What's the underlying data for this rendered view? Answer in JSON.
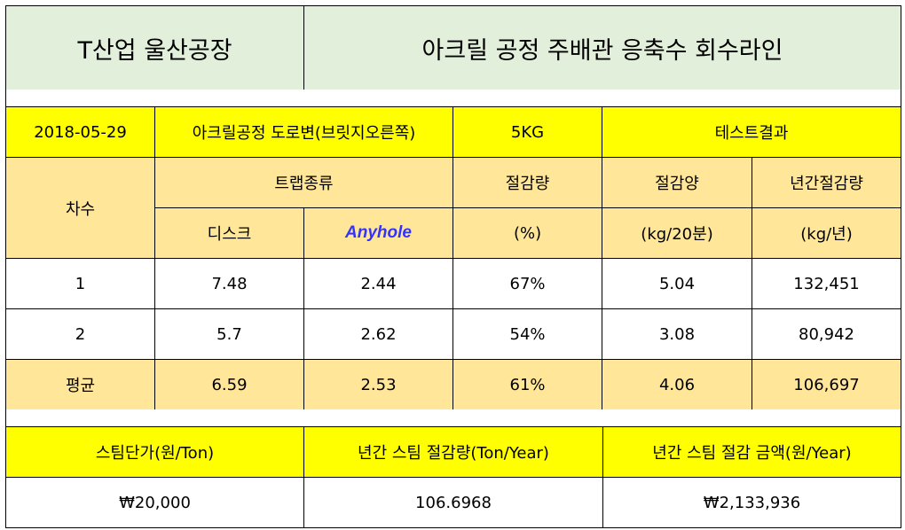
{
  "header": {
    "company": "T산업 울산공장",
    "subject": "아크릴 공정 주배관 응축수 회수라인"
  },
  "info": {
    "date": "2018-05-29",
    "location": "아크릴공정 도로변(브릿지오른쪽)",
    "weight": "5KG",
    "result": "테스트결과"
  },
  "columns": {
    "round": "차수",
    "trap_type": "트랩종류",
    "disc": "디스크",
    "anyhole": "Anyhole",
    "reduction_rate": "절감량",
    "reduction_rate_unit": "(%)",
    "reduction_amount": "절감양",
    "reduction_amount_unit": "(kg/20분)",
    "annual_reduction": "년간절감량",
    "annual_reduction_unit": "(kg/년)"
  },
  "rows": [
    {
      "round": "1",
      "disc": "7.48",
      "anyhole": "2.44",
      "rate": "67%",
      "amount": "5.04",
      "annual": "132,451"
    },
    {
      "round": "2",
      "disc": "5.7",
      "anyhole": "2.62",
      "rate": "54%",
      "amount": "3.08",
      "annual": "80,942"
    }
  ],
  "average": {
    "label": "평균",
    "disc": "6.59",
    "anyhole": "2.53",
    "rate": "61%",
    "amount": "4.06",
    "annual": "106,697"
  },
  "summary": {
    "steam_price_label": "스팀단가(원/Ton)",
    "annual_steam_label": "년간 스팀 절감량(Ton/Year)",
    "annual_amount_label": "년간 스팀 절감 금액(원/Year)",
    "steam_price": "₩20,000",
    "annual_steam": "106.6968",
    "annual_amount": "₩2,133,936"
  },
  "colors": {
    "header_bg": "#e2efda",
    "yellow": "#ffff00",
    "tan": "#ffe699",
    "anyhole_text": "#3333ff"
  }
}
